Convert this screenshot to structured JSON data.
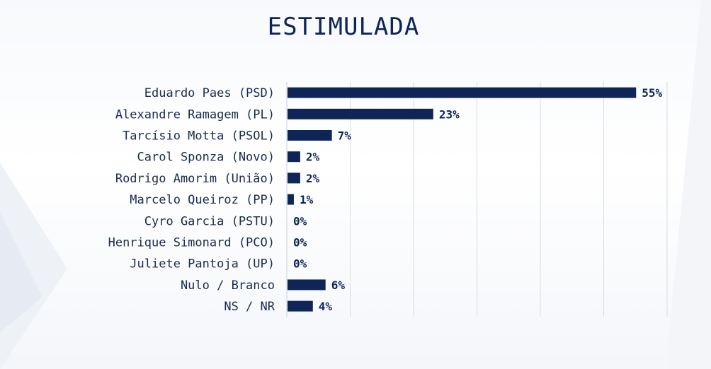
{
  "colors": {
    "bar": "#0f2557",
    "grid": "#d9dde5",
    "axis": "#c9ced8"
  },
  "chart_data": {
    "type": "bar",
    "orientation": "horizontal",
    "title": "ESTIMULADA",
    "categories": [
      "Eduardo Paes (PSD)",
      "Alexandre Ramagem (PL)",
      "Tarcísio Motta (PSOL)",
      "Carol Sponza (Novo)",
      "Rodrigo Amorim (União)",
      "Marcelo Queiroz (PP)",
      "Cyro Garcia (PSTU)",
      "Henrique Simonard (PCO)",
      "Juliete Pantoja (UP)",
      "Nulo / Branco",
      "NS / NR"
    ],
    "values": [
      55,
      23,
      7,
      2,
      2,
      1,
      0,
      0,
      0,
      6,
      4
    ],
    "value_labels": [
      "55%",
      "23%",
      "7%",
      "2%",
      "2%",
      "1%",
      "0%",
      "0%",
      "0%",
      "6%",
      "4%"
    ],
    "xlim": [
      0,
      60
    ],
    "grid": true,
    "legend": "none"
  }
}
